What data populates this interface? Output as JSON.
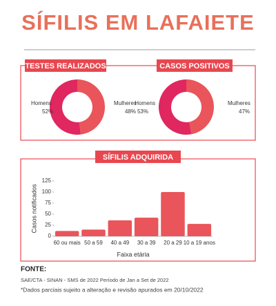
{
  "header": {
    "title": "SÍFILIS EM LAFAIETE"
  },
  "chart_data": [
    {
      "type": "pie",
      "title": "TESTES REALIZADOS",
      "categories": [
        "Homens",
        "Mulheres"
      ],
      "values": [
        52,
        48
      ],
      "value_labels": [
        "52%",
        "48%"
      ],
      "colors": [
        "#e0275f",
        "#e9555a"
      ]
    },
    {
      "type": "pie",
      "title": "CASOS POSITIVOS",
      "categories": [
        "Homens",
        "Mulheres"
      ],
      "values": [
        53,
        47
      ],
      "value_labels": [
        "53%",
        "47%"
      ],
      "colors": [
        "#e0275f",
        "#e9555a"
      ]
    },
    {
      "type": "bar",
      "title": "SÍFILIS ADQUIRIDA",
      "categories": [
        "60 ou mais",
        "50 a 59",
        "40 a 49",
        "30 a 39",
        "20 a 29",
        "10 a 19 anos"
      ],
      "values": [
        12,
        15,
        36,
        42,
        100,
        28
      ],
      "color": "#e9555a",
      "xlabel": "Faixa etária",
      "ylabel": "Casos notificados",
      "ylim": [
        0,
        125
      ],
      "yticks": [
        0,
        25,
        50,
        75,
        100,
        125
      ],
      "grid": false
    }
  ],
  "footer": {
    "heading": "FONTE:",
    "source": "SAE/CTA - SINAN - SMS de 2022 Período de Jan a Set de 2022",
    "note": "*Dados parciais sujeito a alteração e revisão apurados em 20/10/2022"
  }
}
